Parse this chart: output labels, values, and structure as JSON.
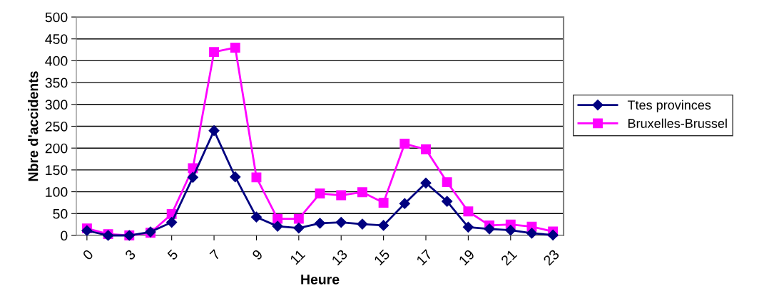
{
  "chart_data": {
    "type": "line",
    "xlabel": "Heure",
    "ylabel": "Nbre d'accidents",
    "categories": [
      "0",
      null,
      "3",
      null,
      "5",
      null,
      "7",
      null,
      "9",
      null,
      "11",
      null,
      "13",
      null,
      "15",
      null,
      "17",
      null,
      "19",
      null,
      "21",
      null,
      "23"
    ],
    "series": [
      {
        "name": "Ttes provinces",
        "color": "#000080",
        "marker": "diamond",
        "values": [
          11,
          0,
          0,
          8,
          30,
          133,
          240,
          134,
          42,
          21,
          17,
          28,
          30,
          26,
          23,
          73,
          120,
          78,
          19,
          15,
          12,
          5,
          1
        ]
      },
      {
        "name": "Bruxelles-Brussel",
        "color": "#ff00ff",
        "marker": "square",
        "values": [
          16,
          3,
          0,
          6,
          49,
          154,
          420,
          430,
          133,
          38,
          38,
          96,
          92,
          99,
          75,
          210,
          197,
          122,
          55,
          23,
          25,
          20,
          9
        ]
      }
    ],
    "ylim": [
      0,
      500
    ],
    "yticks": [
      0,
      50,
      100,
      150,
      200,
      250,
      300,
      350,
      400,
      450,
      500
    ],
    "grid": "y",
    "legend": "right",
    "line_style": "solid"
  }
}
